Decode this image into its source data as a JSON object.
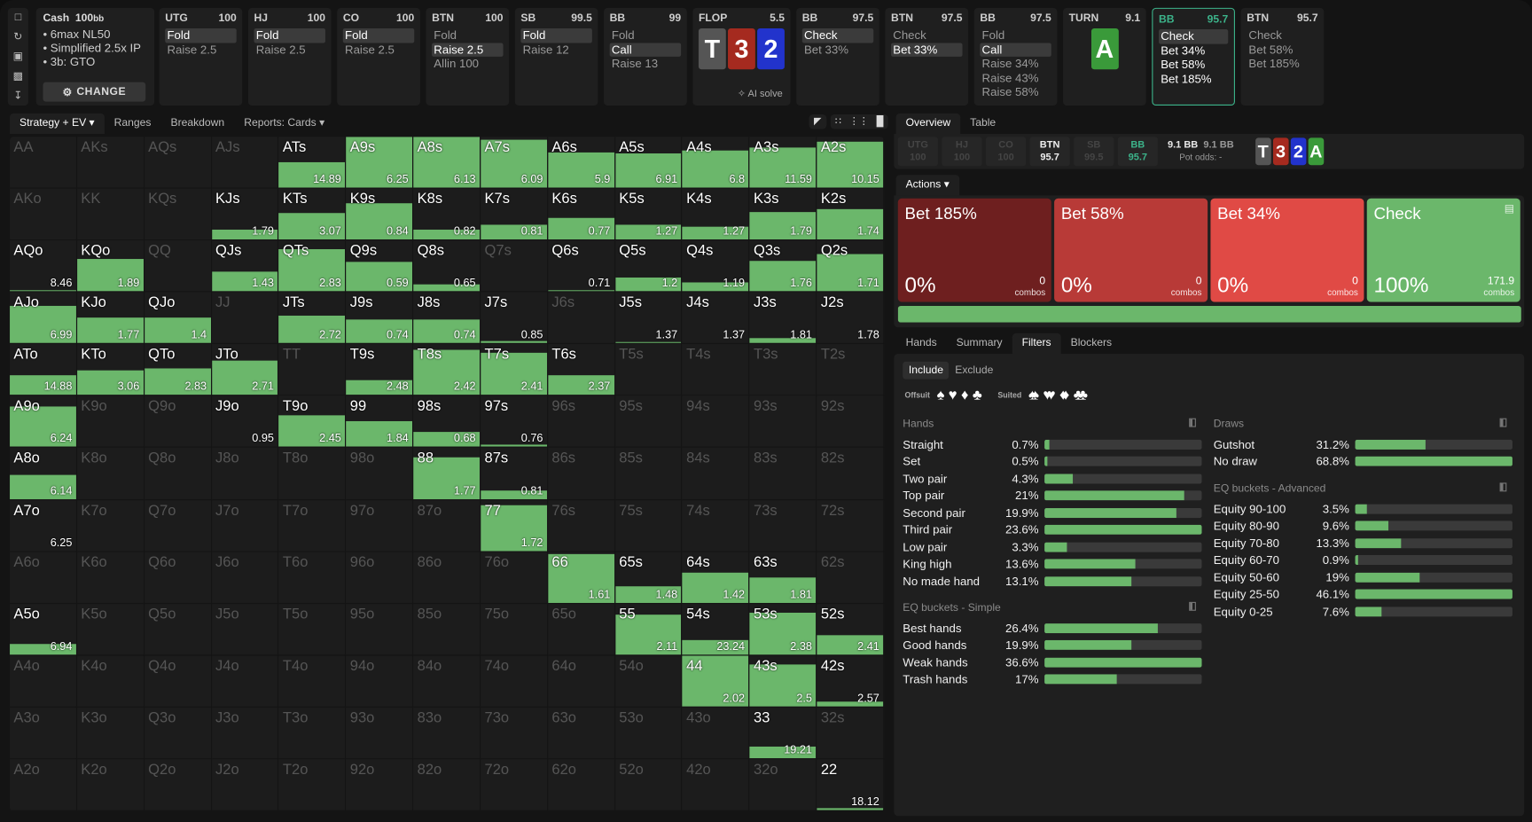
{
  "sidebar_icons": [
    "bookmark-icon",
    "history-icon",
    "save-icon",
    "gamepad-icon",
    "collapse-icon"
  ],
  "game": {
    "title": "Cash",
    "stack": "100",
    "stack_unit": "bb",
    "details": [
      "6max NL50",
      "Simplified 2.5x IP",
      "3b: GTO"
    ],
    "change_label": "CHANGE"
  },
  "nodes": [
    {
      "pos": "UTG",
      "stack": "100",
      "actions": [
        "Fold",
        "Raise 2.5"
      ],
      "sel": 0
    },
    {
      "pos": "HJ",
      "stack": "100",
      "actions": [
        "Fold",
        "Raise 2.5"
      ],
      "sel": 0
    },
    {
      "pos": "CO",
      "stack": "100",
      "actions": [
        "Fold",
        "Raise 2.5"
      ],
      "sel": 0
    },
    {
      "pos": "BTN",
      "stack": "100",
      "actions": [
        "Fold",
        "Raise 2.5",
        "Allin 100"
      ],
      "sel": 1
    },
    {
      "pos": "SB",
      "stack": "99.5",
      "actions": [
        "Fold",
        "Raise 12"
      ],
      "sel": 0
    },
    {
      "pos": "BB",
      "stack": "99",
      "actions": [
        "Fold",
        "Call",
        "Raise 13"
      ],
      "sel": 1
    },
    {
      "street": "FLOP",
      "pot": "5.5",
      "cards": [
        "T",
        "3",
        "2"
      ],
      "ai_label": "AI solve"
    },
    {
      "pos": "BB",
      "stack": "97.5",
      "actions": [
        "Check",
        "Bet 33%"
      ],
      "sel": 0
    },
    {
      "pos": "BTN",
      "stack": "97.5",
      "actions": [
        "Check",
        "Bet 33%"
      ],
      "sel": 1
    },
    {
      "pos": "BB",
      "stack": "97.5",
      "actions": [
        "Fold",
        "Call",
        "Raise 34%",
        "Raise 43%",
        "Raise 58%"
      ],
      "sel": 1
    },
    {
      "street": "TURN",
      "pot": "9.1",
      "cards": [
        "A"
      ]
    },
    {
      "pos": "BB",
      "stack": "95.7",
      "actions": [
        "Check",
        "Bet 34%",
        "Bet 58%",
        "Bet 185%"
      ],
      "sel": 0,
      "active": true
    },
    {
      "pos": "BTN",
      "stack": "95.7",
      "actions": [
        "Check",
        "Bet 58%",
        "Bet 185%"
      ],
      "sel": -1
    }
  ],
  "left_tabs": [
    "Strategy + EV",
    "Ranges",
    "Breakdown",
    "Reports: Cards"
  ],
  "colors": {
    "green": "#6bb76b",
    "bet185": "#6e1f1f",
    "bet58": "#b83a37",
    "bet34": "#e04a45",
    "check": "#6bb76b",
    "spade": "#555555",
    "heart": "#a52a1f",
    "diamond": "#2233cc",
    "club": "#3a9a3a",
    "accent": "#3cb38a"
  },
  "grid": [
    [
      [
        "AA",
        "",
        0
      ],
      [
        "AKs",
        "",
        0
      ],
      [
        "AQs",
        "",
        0
      ],
      [
        "AJs",
        "",
        0
      ],
      [
        "ATs",
        "14.89",
        0.5
      ],
      [
        "A9s",
        "6.25",
        1
      ],
      [
        "A8s",
        "6.13",
        1
      ],
      [
        "A7s",
        "6.09",
        0.95
      ],
      [
        "A6s",
        "5.9",
        0.7
      ],
      [
        "A5s",
        "6.91",
        0.67
      ],
      [
        "A4s",
        "6.8",
        0.74
      ],
      [
        "A3s",
        "11.59",
        0.78
      ],
      [
        "A2s",
        "10.15",
        0.9
      ]
    ],
    [
      [
        "AKo",
        "",
        0
      ],
      [
        "KK",
        "",
        0
      ],
      [
        "KQs",
        "",
        0
      ],
      [
        "KJs",
        "1.79",
        0.2
      ],
      [
        "KTs",
        "3.07",
        0.52
      ],
      [
        "K9s",
        "0.84",
        0.72
      ],
      [
        "K8s",
        "0.82",
        0.2
      ],
      [
        "K7s",
        "0.81",
        0.3
      ],
      [
        "K6s",
        "0.77",
        0.42
      ],
      [
        "K5s",
        "1.27",
        0.29
      ],
      [
        "K4s",
        "1.27",
        0.25
      ],
      [
        "K3s",
        "1.79",
        0.55
      ],
      [
        "K2s",
        "1.74",
        0.6
      ]
    ],
    [
      [
        "AQo",
        "8.46",
        0.03
      ],
      [
        "KQo",
        "1.89",
        0.63
      ],
      [
        "QQ",
        "",
        0
      ],
      [
        "QJs",
        "1.43",
        0.38
      ],
      [
        "QTs",
        "2.83",
        0.83
      ],
      [
        "Q9s",
        "0.59",
        0.58
      ],
      [
        "Q8s",
        "0.65",
        0.13
      ],
      [
        "Q7s",
        "",
        0
      ],
      [
        "Q6s",
        "0.71",
        0.02
      ],
      [
        "Q5s",
        "1.2",
        0.28
      ],
      [
        "Q4s",
        "1.19",
        0.17
      ],
      [
        "Q3s",
        "1.76",
        0.6
      ],
      [
        "Q2s",
        "1.71",
        0.73
      ]
    ],
    [
      [
        "AJo",
        "6.99",
        0.73
      ],
      [
        "KJo",
        "1.77",
        0.5
      ],
      [
        "QJo",
        "1.4",
        0.5
      ],
      [
        "JJ",
        "",
        0
      ],
      [
        "JTs",
        "2.72",
        0.54
      ],
      [
        "J9s",
        "0.74",
        0.47
      ],
      [
        "J8s",
        "0.74",
        0.47
      ],
      [
        "J7s",
        "0.85",
        0.04
      ],
      [
        "J6s",
        "",
        0
      ],
      [
        "J5s",
        "1.37",
        0.02
      ],
      [
        "J4s",
        "1.37",
        0
      ],
      [
        "J3s",
        "1.81",
        0.1
      ],
      [
        "J2s",
        "1.78",
        0
      ]
    ],
    [
      [
        "ATo",
        "14.88",
        0.4
      ],
      [
        "KTo",
        "3.06",
        0.48
      ],
      [
        "QTo",
        "2.83",
        0.52
      ],
      [
        "JTo",
        "2.71",
        0.67
      ],
      [
        "TT",
        "",
        0
      ],
      [
        "T9s",
        "2.48",
        0.3
      ],
      [
        "T8s",
        "2.42",
        0.9
      ],
      [
        "T7s",
        "2.41",
        0.83
      ],
      [
        "T6s",
        "2.37",
        0.4
      ],
      [
        "T5s",
        "",
        0
      ],
      [
        "T4s",
        "",
        0
      ],
      [
        "T3s",
        "",
        0
      ],
      [
        "T2s",
        "",
        0
      ]
    ],
    [
      [
        "A9o",
        "6.24",
        0.8
      ],
      [
        "K9o",
        "",
        0
      ],
      [
        "Q9o",
        "",
        0
      ],
      [
        "J9o",
        "0.95",
        0
      ],
      [
        "T9o",
        "2.45",
        0.62
      ],
      [
        "99",
        "1.84",
        0.5
      ],
      [
        "98s",
        "0.68",
        0.3
      ],
      [
        "97s",
        "0.76",
        0.05
      ],
      [
        "96s",
        "",
        0
      ],
      [
        "95s",
        "",
        0
      ],
      [
        "94s",
        "",
        0
      ],
      [
        "93s",
        "",
        0
      ],
      [
        "92s",
        "",
        0
      ]
    ],
    [
      [
        "A8o",
        "6.14",
        0.48
      ],
      [
        "K8o",
        "",
        0
      ],
      [
        "Q8o",
        "",
        0
      ],
      [
        "J8o",
        "",
        0
      ],
      [
        "T8o",
        "",
        0
      ],
      [
        "98o",
        "",
        0
      ],
      [
        "88",
        "1.77",
        0.82
      ],
      [
        "87s",
        "0.81",
        0.16
      ],
      [
        "86s",
        "",
        0
      ],
      [
        "85s",
        "",
        0
      ],
      [
        "84s",
        "",
        0
      ],
      [
        "83s",
        "",
        0
      ],
      [
        "82s",
        "",
        0
      ]
    ],
    [
      [
        "A7o",
        "6.25",
        0
      ],
      [
        "K7o",
        "",
        0
      ],
      [
        "Q7o",
        "",
        0
      ],
      [
        "J7o",
        "",
        0
      ],
      [
        "T7o",
        "",
        0
      ],
      [
        "97o",
        "",
        0
      ],
      [
        "87o",
        "",
        0
      ],
      [
        "77",
        "1.72",
        0.9
      ],
      [
        "76s",
        "",
        0
      ],
      [
        "75s",
        "",
        0
      ],
      [
        "74s",
        "",
        0
      ],
      [
        "73s",
        "",
        0
      ],
      [
        "72s",
        "",
        0
      ]
    ],
    [
      [
        "A6o",
        "",
        0
      ],
      [
        "K6o",
        "",
        0
      ],
      [
        "Q6o",
        "",
        0
      ],
      [
        "J6o",
        "",
        0
      ],
      [
        "T6o",
        "",
        0
      ],
      [
        "96o",
        "",
        0
      ],
      [
        "86o",
        "",
        0
      ],
      [
        "76o",
        "",
        0
      ],
      [
        "66",
        "1.61",
        0.95
      ],
      [
        "65s",
        "1.48",
        0.32
      ],
      [
        "64s",
        "1.42",
        0.59
      ],
      [
        "63s",
        "1.81",
        0.5
      ],
      [
        "62s",
        "",
        0
      ]
    ],
    [
      [
        "A5o",
        "6.94",
        0.2
      ],
      [
        "K5o",
        "",
        0
      ],
      [
        "Q5o",
        "",
        0
      ],
      [
        "J5o",
        "",
        0
      ],
      [
        "T5o",
        "",
        0
      ],
      [
        "95o",
        "",
        0
      ],
      [
        "85o",
        "",
        0
      ],
      [
        "75o",
        "",
        0
      ],
      [
        "65o",
        "",
        0
      ],
      [
        "55",
        "2.11",
        0.78
      ],
      [
        "54s",
        "23.24",
        0.29
      ],
      [
        "53s",
        "2.38",
        0.83
      ],
      [
        "52s",
        "2.41",
        0.38
      ]
    ],
    [
      [
        "A4o",
        "",
        0
      ],
      [
        "K4o",
        "",
        0
      ],
      [
        "Q4o",
        "",
        0
      ],
      [
        "J4o",
        "",
        0
      ],
      [
        "T4o",
        "",
        0
      ],
      [
        "94o",
        "",
        0
      ],
      [
        "84o",
        "",
        0
      ],
      [
        "74o",
        "",
        0
      ],
      [
        "64o",
        "",
        0
      ],
      [
        "54o",
        "",
        0
      ],
      [
        "44",
        "2.02",
        1
      ],
      [
        "43s",
        "2.5",
        0.83
      ],
      [
        "42s",
        "2.57",
        0.1
      ]
    ],
    [
      [
        "A3o",
        "",
        0
      ],
      [
        "K3o",
        "",
        0
      ],
      [
        "Q3o",
        "",
        0
      ],
      [
        "J3o",
        "",
        0
      ],
      [
        "T3o",
        "",
        0
      ],
      [
        "93o",
        "",
        0
      ],
      [
        "83o",
        "",
        0
      ],
      [
        "73o",
        "",
        0
      ],
      [
        "63o",
        "",
        0
      ],
      [
        "53o",
        "",
        0
      ],
      [
        "43o",
        "",
        0
      ],
      [
        "33",
        "19.21",
        0.23
      ],
      [
        "32s",
        "",
        0
      ]
    ],
    [
      [
        "A2o",
        "",
        0
      ],
      [
        "K2o",
        "",
        0
      ],
      [
        "Q2o",
        "",
        0
      ],
      [
        "J2o",
        "",
        0
      ],
      [
        "T2o",
        "",
        0
      ],
      [
        "92o",
        "",
        0
      ],
      [
        "82o",
        "",
        0
      ],
      [
        "72o",
        "",
        0
      ],
      [
        "62o",
        "",
        0
      ],
      [
        "52o",
        "",
        0
      ],
      [
        "42o",
        "",
        0
      ],
      [
        "32o",
        "",
        0
      ],
      [
        "22",
        "18.12",
        0.04
      ]
    ]
  ],
  "right_tabs": [
    "Overview",
    "Table"
  ],
  "seats": [
    {
      "pos": "UTG",
      "stack": "100"
    },
    {
      "pos": "HJ",
      "stack": "100"
    },
    {
      "pos": "CO",
      "stack": "100"
    },
    {
      "pos": "BTN",
      "stack": "95.7"
    },
    {
      "pos": "SB",
      "stack": "99.5"
    },
    {
      "pos": "BB",
      "stack": "95.7"
    }
  ],
  "pot": {
    "main": "9.1 BB",
    "total": "9.1 BB",
    "odds_label": "Pot odds:",
    "odds": "-"
  },
  "board": [
    "T",
    "3",
    "2",
    "A"
  ],
  "actions_tab": "Actions",
  "action_cards": [
    {
      "name": "Bet 185%",
      "pct": "0%",
      "combos": "0"
    },
    {
      "name": "Bet 58%",
      "pct": "0%",
      "combos": "0"
    },
    {
      "name": "Bet 34%",
      "pct": "0%",
      "combos": "0"
    },
    {
      "name": "Check",
      "pct": "100%",
      "combos": "171.9"
    }
  ],
  "combos_label": "combos",
  "strategy_bar": {
    "check": 1.0
  },
  "lower_tabs": [
    "Hands",
    "Summary",
    "Filters",
    "Blockers"
  ],
  "filter_modes": [
    "Include",
    "Exclude"
  ],
  "offsuit_label": "Offsuit",
  "suited_label": "Suited",
  "sections": [
    {
      "title": "Hands",
      "rows": [
        [
          "Straight",
          "0.7%",
          0.03
        ],
        [
          "Set",
          "0.5%",
          0.02
        ],
        [
          "Two pair",
          "4.3%",
          0.18
        ],
        [
          "Top pair",
          "21%",
          0.89
        ],
        [
          "Second pair",
          "19.9%",
          0.84
        ],
        [
          "Third pair",
          "23.6%",
          1
        ],
        [
          "Low pair",
          "3.3%",
          0.14
        ],
        [
          "King high",
          "13.6%",
          0.58
        ],
        [
          "No made hand",
          "13.1%",
          0.55
        ]
      ]
    },
    {
      "title": "EQ buckets - Simple",
      "rows": [
        [
          "Best hands",
          "26.4%",
          0.72
        ],
        [
          "Good hands",
          "19.9%",
          0.55
        ],
        [
          "Weak hands",
          "36.6%",
          1
        ],
        [
          "Trash hands",
          "17%",
          0.46
        ]
      ]
    },
    {
      "title": "Draws",
      "rows": [
        [
          "Gutshot",
          "31.2%",
          0.45
        ],
        [
          "No draw",
          "68.8%",
          1
        ]
      ]
    },
    {
      "title": "EQ buckets - Advanced",
      "rows": [
        [
          "Equity 90-100",
          "3.5%",
          0.075
        ],
        [
          "Equity 80-90",
          "9.6%",
          0.21
        ],
        [
          "Equity 70-80",
          "13.3%",
          0.29
        ],
        [
          "Equity 60-70",
          "0.9%",
          0.02
        ],
        [
          "Equity 50-60",
          "19%",
          0.41
        ],
        [
          "Equity 25-50",
          "46.1%",
          1
        ],
        [
          "Equity 0-25",
          "7.6%",
          0.165
        ]
      ]
    }
  ]
}
